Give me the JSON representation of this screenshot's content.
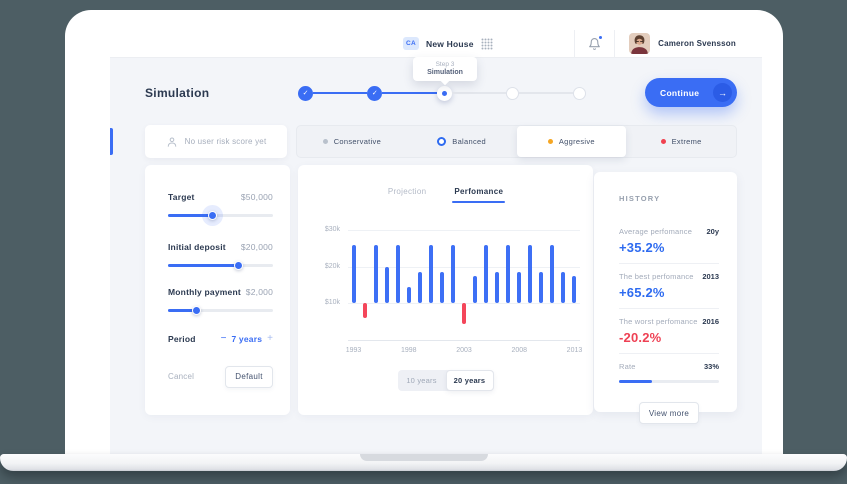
{
  "theme": {
    "accent_blue": "#3a6df4",
    "text_blue": "#2e6bf0",
    "text_red": "#ee4154",
    "bar_blue": "#3d6ff5",
    "bar_red": "#f4465a"
  },
  "topbar": {
    "workspace_badge": "CA",
    "workspace_name": "New House",
    "user_name": "Cameron Svensson",
    "tooltip": {
      "step": "Step 3",
      "name": "Simulation"
    }
  },
  "header": {
    "title": "Simulation",
    "continue_label": "Continue",
    "continue_arrow": "→",
    "stepper_steps": [
      {
        "state": "done"
      },
      {
        "state": "done"
      },
      {
        "state": "current"
      },
      {
        "state": "todo"
      },
      {
        "state": "todo"
      }
    ]
  },
  "risk": {
    "empty_label": "No user risk score yet",
    "options": [
      {
        "label": "Conservative",
        "dot": "#b9c1cc",
        "style": "dot",
        "selected": false
      },
      {
        "label": "Balanced",
        "dot": "#2e6bf0",
        "style": "ring",
        "selected": false
      },
      {
        "label": "Aggresive",
        "dot": "#f5a623",
        "style": "dot",
        "selected": true
      },
      {
        "label": "Extreme",
        "dot": "#f0414f",
        "style": "dot",
        "selected": false
      }
    ]
  },
  "controls": {
    "sliders": [
      {
        "label": "Target",
        "value": "$50,000",
        "percent": 42,
        "halo": true
      },
      {
        "label": "Initial deposit",
        "value": "$20,000",
        "percent": 67,
        "halo": false
      },
      {
        "label": "Monthly payment",
        "value": "$2,000",
        "percent": 27,
        "halo": false
      }
    ],
    "period": {
      "label": "Period",
      "minus": "−",
      "value": "7 years",
      "plus": "+"
    },
    "cancel_label": "Cancel",
    "default_label": "Default"
  },
  "chart": {
    "tabs": [
      {
        "label": "Projection",
        "active": false
      },
      {
        "label": "Perfomance",
        "active": true
      }
    ],
    "range_toggle": [
      {
        "label": "10 years",
        "active": false
      },
      {
        "label": "20 years",
        "active": true
      }
    ]
  },
  "chart_data": {
    "type": "bar",
    "unit": "$k",
    "baseline": 10,
    "ylim": [
      0,
      32
    ],
    "y_ticks": [
      {
        "value": 30,
        "label": "$30k"
      },
      {
        "value": 20,
        "label": "$20k"
      },
      {
        "value": 10,
        "label": "$10k"
      }
    ],
    "x_tick_years": [
      1993,
      1998,
      2003,
      2008,
      2013
    ],
    "bars": [
      {
        "year": 1993,
        "value": 26,
        "color": "#3d6ff5"
      },
      {
        "year": 1994,
        "value": 6,
        "color": "#f4465a"
      },
      {
        "year": 1995,
        "value": 26,
        "color": "#3d6ff5"
      },
      {
        "year": 1996,
        "value": 20,
        "color": "#3d6ff5"
      },
      {
        "year": 1997,
        "value": 26,
        "color": "#3d6ff5"
      },
      {
        "year": 1998,
        "value": 14.5,
        "color": "#3d6ff5"
      },
      {
        "year": 1999,
        "value": 18.5,
        "color": "#3d6ff5"
      },
      {
        "year": 2000,
        "value": 26,
        "color": "#3d6ff5"
      },
      {
        "year": 2001,
        "value": 18.5,
        "color": "#3d6ff5"
      },
      {
        "year": 2002,
        "value": 26,
        "color": "#3d6ff5"
      },
      {
        "year": 2003,
        "value": 4.5,
        "color": "#f4465a"
      },
      {
        "year": 2004,
        "value": 17.5,
        "color": "#3d6ff5"
      },
      {
        "year": 2005,
        "value": 26,
        "color": "#3d6ff5"
      },
      {
        "year": 2006,
        "value": 18.5,
        "color": "#3d6ff5"
      },
      {
        "year": 2007,
        "value": 26,
        "color": "#3d6ff5"
      },
      {
        "year": 2008,
        "value": 18.5,
        "color": "#3d6ff5"
      },
      {
        "year": 2009,
        "value": 26,
        "color": "#3d6ff5"
      },
      {
        "year": 2010,
        "value": 18.5,
        "color": "#3d6ff5"
      },
      {
        "year": 2011,
        "value": 26,
        "color": "#3d6ff5"
      },
      {
        "year": 2012,
        "value": 18.5,
        "color": "#3d6ff5"
      },
      {
        "year": 2013,
        "value": 17.5,
        "color": "#3d6ff5"
      }
    ]
  },
  "history": {
    "title": "HISTORY",
    "rows": [
      {
        "label": "Average perfomance",
        "tag": "20y",
        "value": "+35.2%",
        "color": "#2e6bf0"
      },
      {
        "label": "The best perfomance",
        "tag": "2013",
        "value": "+65.2%",
        "color": "#2e6bf0"
      },
      {
        "label": "The worst perfomance",
        "tag": "2016",
        "value": "-20.2%",
        "color": "#ee4154"
      }
    ],
    "rate": {
      "label": "Rate",
      "value": "33%",
      "percent": 33
    },
    "view_more_label": "View more"
  }
}
